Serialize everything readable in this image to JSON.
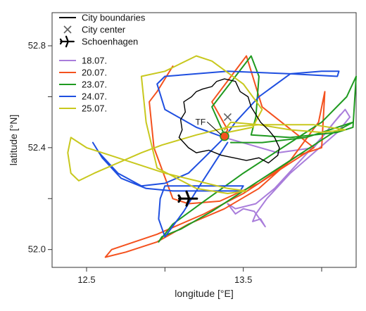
{
  "chart_data": {
    "type": "line",
    "title": "",
    "xlabel": "longitude [°E]",
    "ylabel": "latitude [°N]",
    "xlim": [
      12.28,
      14.22
    ],
    "ylim": [
      51.93,
      52.93
    ],
    "x_ticks": [
      12.5,
      13.0,
      13.5,
      14.0
    ],
    "x_tick_labels": [
      "12.5",
      "",
      "13.5",
      ""
    ],
    "y_ticks": [
      52.0,
      52.2,
      52.4,
      52.6,
      52.8
    ],
    "y_tick_labels": [
      "52.0",
      "",
      "52.4",
      "",
      "52.8"
    ],
    "grid": false,
    "legend_placement": "top-left",
    "legend": [
      {
        "label": "City boundaries",
        "kind": "line",
        "color": "#000000"
      },
      {
        "label": "City center",
        "kind": "x-marker",
        "color": "#606060"
      },
      {
        "label": "Schoenhagen",
        "kind": "plane-marker",
        "color": "#000000"
      },
      {
        "label": "18.07.",
        "kind": "line",
        "color": "#a97ddb"
      },
      {
        "label": "20.07.",
        "kind": "line",
        "color": "#f4511e"
      },
      {
        "label": "23.07.",
        "kind": "line",
        "color": "#1f9a20"
      },
      {
        "label": "24.07.",
        "kind": "line",
        "color": "#1f4fe0"
      },
      {
        "label": "25.07.",
        "kind": "line",
        "color": "#c8c81e"
      }
    ],
    "city_center": {
      "x": 13.4,
      "y": 52.52
    },
    "schoenhagen": {
      "x": 13.15,
      "y": 52.2
    },
    "annotations": [
      {
        "text": "TF",
        "x": 13.26,
        "y": 52.49
      }
    ],
    "city_boundary": [
      [
        13.09,
        52.44
      ],
      [
        13.12,
        52.42
      ],
      [
        13.15,
        52.4
      ],
      [
        13.2,
        52.38
      ],
      [
        13.28,
        52.39
      ],
      [
        13.36,
        52.37
      ],
      [
        13.44,
        52.36
      ],
      [
        13.52,
        52.35
      ],
      [
        13.6,
        52.36
      ],
      [
        13.66,
        52.34
      ],
      [
        13.72,
        52.37
      ],
      [
        13.73,
        52.4
      ],
      [
        13.7,
        52.44
      ],
      [
        13.66,
        52.47
      ],
      [
        13.61,
        52.5
      ],
      [
        13.58,
        52.53
      ],
      [
        13.55,
        52.56
      ],
      [
        13.53,
        52.6
      ],
      [
        13.48,
        52.62
      ],
      [
        13.45,
        52.66
      ],
      [
        13.38,
        52.67
      ],
      [
        13.33,
        52.66
      ],
      [
        13.3,
        52.64
      ],
      [
        13.24,
        52.63
      ],
      [
        13.2,
        52.62
      ],
      [
        13.17,
        52.6
      ],
      [
        13.12,
        52.58
      ],
      [
        13.13,
        52.54
      ],
      [
        13.1,
        52.51
      ],
      [
        13.11,
        52.47
      ],
      [
        13.09,
        52.44
      ]
    ],
    "series": [
      {
        "name": "18.07.",
        "color": "#a97ddb",
        "points": [
          [
            13.38,
            52.44
          ],
          [
            13.55,
            52.41
          ],
          [
            13.72,
            52.38
          ],
          [
            13.95,
            52.4
          ],
          [
            14.08,
            52.5
          ],
          [
            14.15,
            52.55
          ],
          [
            14.18,
            52.52
          ],
          [
            14.1,
            52.46
          ],
          [
            13.95,
            52.38
          ],
          [
            13.8,
            52.3
          ],
          [
            13.65,
            52.2
          ],
          [
            13.58,
            52.14
          ],
          [
            13.56,
            52.11
          ],
          [
            13.61,
            52.12
          ],
          [
            13.64,
            52.09
          ],
          [
            13.57,
            52.15
          ],
          [
            13.5,
            52.16
          ],
          [
            13.45,
            52.14
          ],
          [
            13.4,
            52.18
          ],
          [
            13.45,
            52.16
          ],
          [
            13.58,
            52.18
          ],
          [
            13.7,
            52.24
          ],
          [
            13.85,
            52.34
          ],
          [
            14.0,
            52.44
          ],
          [
            14.12,
            52.53
          ]
        ]
      },
      {
        "name": "20.07.",
        "color": "#f4511e",
        "points": [
          [
            13.05,
            52.72
          ],
          [
            12.95,
            52.62
          ],
          [
            12.9,
            52.58
          ],
          [
            12.93,
            52.4
          ],
          [
            13.05,
            52.2
          ],
          [
            13.15,
            52.18
          ],
          [
            13.35,
            52.19
          ],
          [
            13.6,
            52.26
          ],
          [
            13.85,
            52.37
          ],
          [
            14.0,
            52.4
          ],
          [
            14.02,
            52.62
          ],
          [
            13.98,
            52.5
          ],
          [
            13.8,
            52.35
          ],
          [
            13.6,
            52.24
          ],
          [
            13.38,
            52.16
          ],
          [
            13.15,
            52.1
          ],
          [
            12.95,
            52.03
          ],
          [
            12.75,
            51.99
          ],
          [
            12.62,
            51.97
          ],
          [
            12.66,
            52.0
          ],
          [
            12.95,
            52.06
          ],
          [
            13.25,
            52.14
          ],
          [
            13.5,
            52.22
          ],
          [
            13.75,
            52.32
          ],
          [
            13.95,
            52.4
          ],
          [
            13.62,
            52.56
          ],
          [
            13.52,
            52.76
          ],
          [
            13.3,
            52.58
          ],
          [
            13.4,
            52.47
          ],
          [
            13.38,
            52.45
          ]
        ]
      },
      {
        "name": "23.07.",
        "color": "#1f9a20",
        "points": [
          [
            13.38,
            52.45
          ],
          [
            13.3,
            52.56
          ],
          [
            13.4,
            52.64
          ],
          [
            13.55,
            52.76
          ],
          [
            13.6,
            52.68
          ],
          [
            13.58,
            52.52
          ],
          [
            13.55,
            52.45
          ],
          [
            13.8,
            52.44
          ],
          [
            14.1,
            52.46
          ],
          [
            14.2,
            52.48
          ],
          [
            14.22,
            52.68
          ],
          [
            14.16,
            52.6
          ],
          [
            14.0,
            52.5
          ],
          [
            13.75,
            52.4
          ],
          [
            13.5,
            52.3
          ],
          [
            13.25,
            52.19
          ],
          [
            13.05,
            52.1
          ],
          [
            12.96,
            52.03
          ],
          [
            12.98,
            52.05
          ],
          [
            13.1,
            52.08
          ],
          [
            13.3,
            52.15
          ],
          [
            13.55,
            52.25
          ],
          [
            13.8,
            52.35
          ],
          [
            14.05,
            52.45
          ],
          [
            14.2,
            52.5
          ],
          [
            13.9,
            52.44
          ],
          [
            13.62,
            52.42
          ],
          [
            13.42,
            52.42
          ]
        ]
      },
      {
        "name": "24.07.",
        "color": "#1f4fe0",
        "points": [
          [
            13.38,
            52.44
          ],
          [
            13.2,
            52.48
          ],
          [
            13.0,
            52.55
          ],
          [
            12.95,
            52.65
          ],
          [
            13.0,
            52.68
          ],
          [
            13.4,
            52.7
          ],
          [
            13.8,
            52.69
          ],
          [
            14.0,
            52.7
          ],
          [
            14.11,
            52.7
          ],
          [
            14.1,
            52.68
          ],
          [
            13.8,
            52.69
          ],
          [
            13.6,
            52.6
          ],
          [
            13.45,
            52.5
          ],
          [
            13.38,
            52.44
          ],
          [
            13.25,
            52.36
          ],
          [
            13.15,
            52.3
          ],
          [
            13.0,
            52.26
          ],
          [
            12.85,
            52.25
          ],
          [
            12.7,
            52.3
          ],
          [
            12.58,
            52.38
          ],
          [
            12.54,
            52.42
          ],
          [
            12.6,
            52.36
          ],
          [
            12.72,
            52.28
          ],
          [
            12.88,
            52.24
          ],
          [
            13.05,
            52.23
          ],
          [
            13.2,
            52.23
          ],
          [
            13.48,
            52.23
          ],
          [
            13.5,
            52.25
          ],
          [
            13.2,
            52.25
          ],
          [
            13.0,
            52.25
          ],
          [
            12.97,
            52.2
          ],
          [
            12.96,
            52.12
          ],
          [
            13.0,
            52.05
          ],
          [
            13.12,
            52.15
          ],
          [
            13.2,
            52.23
          ],
          [
            13.4,
            52.42
          ]
        ]
      },
      {
        "name": "25.07.",
        "color": "#c8c81e",
        "points": [
          [
            13.38,
            52.47
          ],
          [
            13.42,
            52.5
          ],
          [
            13.6,
            52.49
          ],
          [
            13.8,
            52.47
          ],
          [
            14.0,
            52.46
          ],
          [
            14.15,
            52.47
          ],
          [
            13.95,
            52.49
          ],
          [
            13.6,
            52.49
          ],
          [
            13.4,
            52.48
          ],
          [
            13.2,
            52.45
          ],
          [
            12.98,
            52.41
          ],
          [
            12.85,
            52.38
          ],
          [
            12.7,
            52.34
          ],
          [
            12.55,
            52.3
          ],
          [
            12.45,
            52.27
          ],
          [
            12.4,
            52.3
          ],
          [
            12.38,
            52.38
          ],
          [
            12.4,
            52.44
          ],
          [
            12.5,
            52.4
          ],
          [
            12.65,
            52.37
          ],
          [
            12.85,
            52.33
          ],
          [
            13.0,
            52.3
          ],
          [
            13.2,
            52.27
          ],
          [
            13.4,
            52.24
          ],
          [
            13.52,
            52.23
          ],
          [
            13.4,
            52.22
          ],
          [
            13.2,
            52.24
          ],
          [
            12.95,
            52.32
          ],
          [
            12.88,
            52.5
          ],
          [
            12.85,
            52.68
          ],
          [
            13.0,
            52.7
          ],
          [
            13.2,
            52.76
          ],
          [
            13.3,
            52.74
          ],
          [
            13.5,
            52.65
          ],
          [
            13.62,
            52.55
          ],
          [
            13.56,
            52.48
          ],
          [
            13.4,
            52.46
          ]
        ]
      }
    ]
  }
}
